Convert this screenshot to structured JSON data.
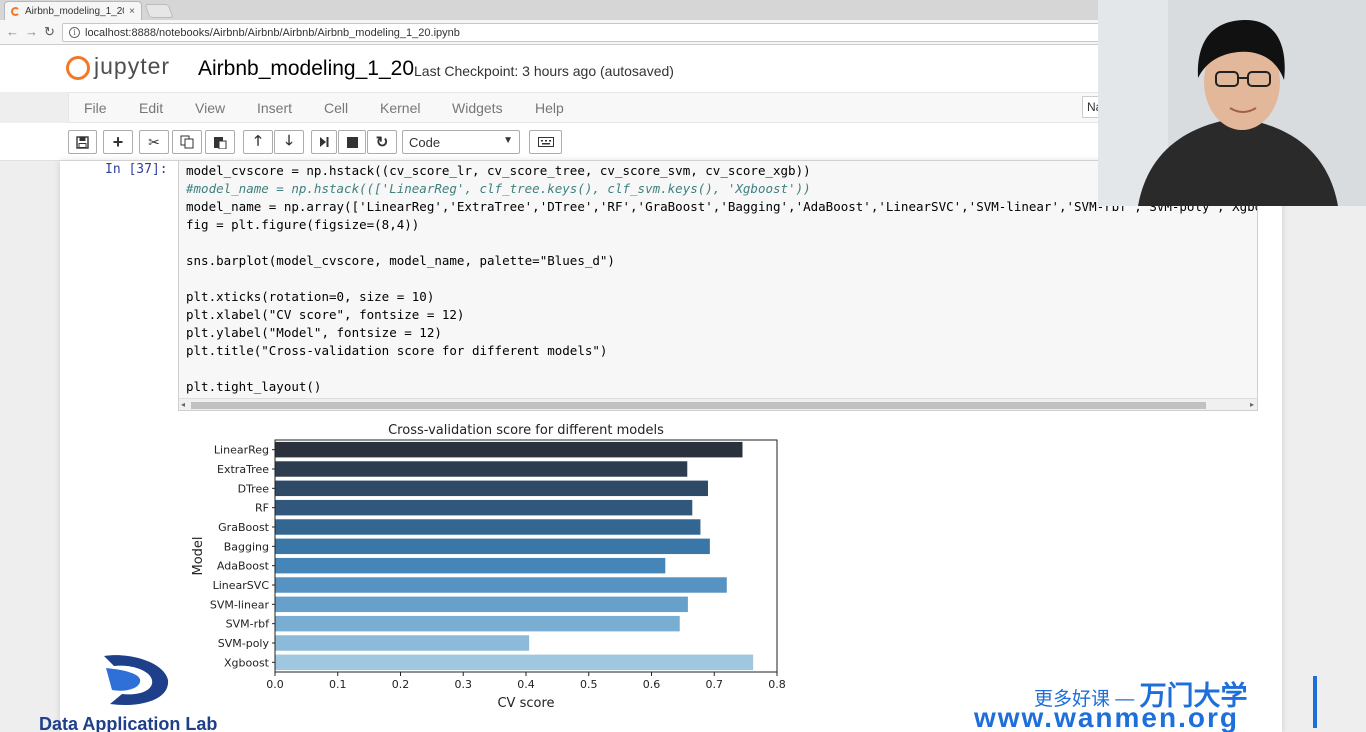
{
  "browser": {
    "tab_title": "Airbnb_modeling_1_20",
    "tab_close": "×",
    "url": "localhost:8888/notebooks/Airbnb/Airbnb/Airbnb/Airbnb_modeling_1_20.ipynb"
  },
  "jupyter": {
    "logo_text": "jupyter",
    "notebook_name": "Airbnb_modeling_1_20",
    "checkpoint": "Last Checkpoint: 3 hours ago (autosaved)",
    "kernel_label": "Na"
  },
  "menu": {
    "file": "File",
    "edit": "Edit",
    "view": "View",
    "insert": "Insert",
    "cell": "Cell",
    "kernel": "Kernel",
    "widgets": "Widgets",
    "help": "Help"
  },
  "toolbar": {
    "cell_type": "Code"
  },
  "cell": {
    "prompt": "In  [37]:",
    "lines": [
      "model_cvscore = np.hstack((cv_score_lr, cv_score_tree, cv_score_svm, cv_score_xgb))",
      "#model_name = np.hstack((['LinearReg', clf_tree.keys(), clf_svm.keys(), 'Xgboost'))",
      "model_name = np.array(['LinearReg','ExtraTree','DTree','RF','GraBoost','Bagging','AdaBoost','LinearSVC','SVM-linear','SVM-rbf','SVM-poly','Xgbo",
      "fig = plt.figure(figsize=(8,4))",
      "",
      "sns.barplot(model_cvscore, model_name, palette=\"Blues_d\")",
      "",
      "plt.xticks(rotation=0, size = 10)",
      "plt.xlabel(\"CV score\", fontsize = 12)",
      "plt.ylabel(\"Model\", fontsize = 12)",
      "plt.title(\"Cross-validation score for different models\")",
      "",
      "plt.tight_layout()"
    ]
  },
  "chart_data": {
    "type": "bar",
    "orientation": "horizontal",
    "title": "Cross-validation score for different models",
    "xlabel": "CV score",
    "ylabel": "Model",
    "categories": [
      "LinearReg",
      "ExtraTree",
      "DTree",
      "RF",
      "GraBoost",
      "Bagging",
      "AdaBoost",
      "LinearSVC",
      "SVM-linear",
      "SVM-rbf",
      "SVM-poly",
      "Xgboost"
    ],
    "values": [
      0.745,
      0.657,
      0.69,
      0.665,
      0.678,
      0.693,
      0.622,
      0.72,
      0.658,
      0.645,
      0.405,
      0.762
    ],
    "colors": [
      "#2b313c",
      "#2e3c4f",
      "#2f4a66",
      "#31577c",
      "#336791",
      "#3a77a7",
      "#4685b7",
      "#5693c3",
      "#67a0cb",
      "#7aadd2",
      "#8cbad9",
      "#9fc7e0"
    ],
    "xlim": [
      0,
      0.8
    ],
    "xticks": [
      "0.0",
      "0.1",
      "0.2",
      "0.3",
      "0.4",
      "0.5",
      "0.6",
      "0.7",
      "0.8"
    ],
    "grid": false,
    "legend": "none"
  },
  "watermarks": {
    "lab_name": "Data Application Lab",
    "cn_prefix": "更多好课 —",
    "cn_brand": "万门大学",
    "url": "www.wanmen.org"
  }
}
